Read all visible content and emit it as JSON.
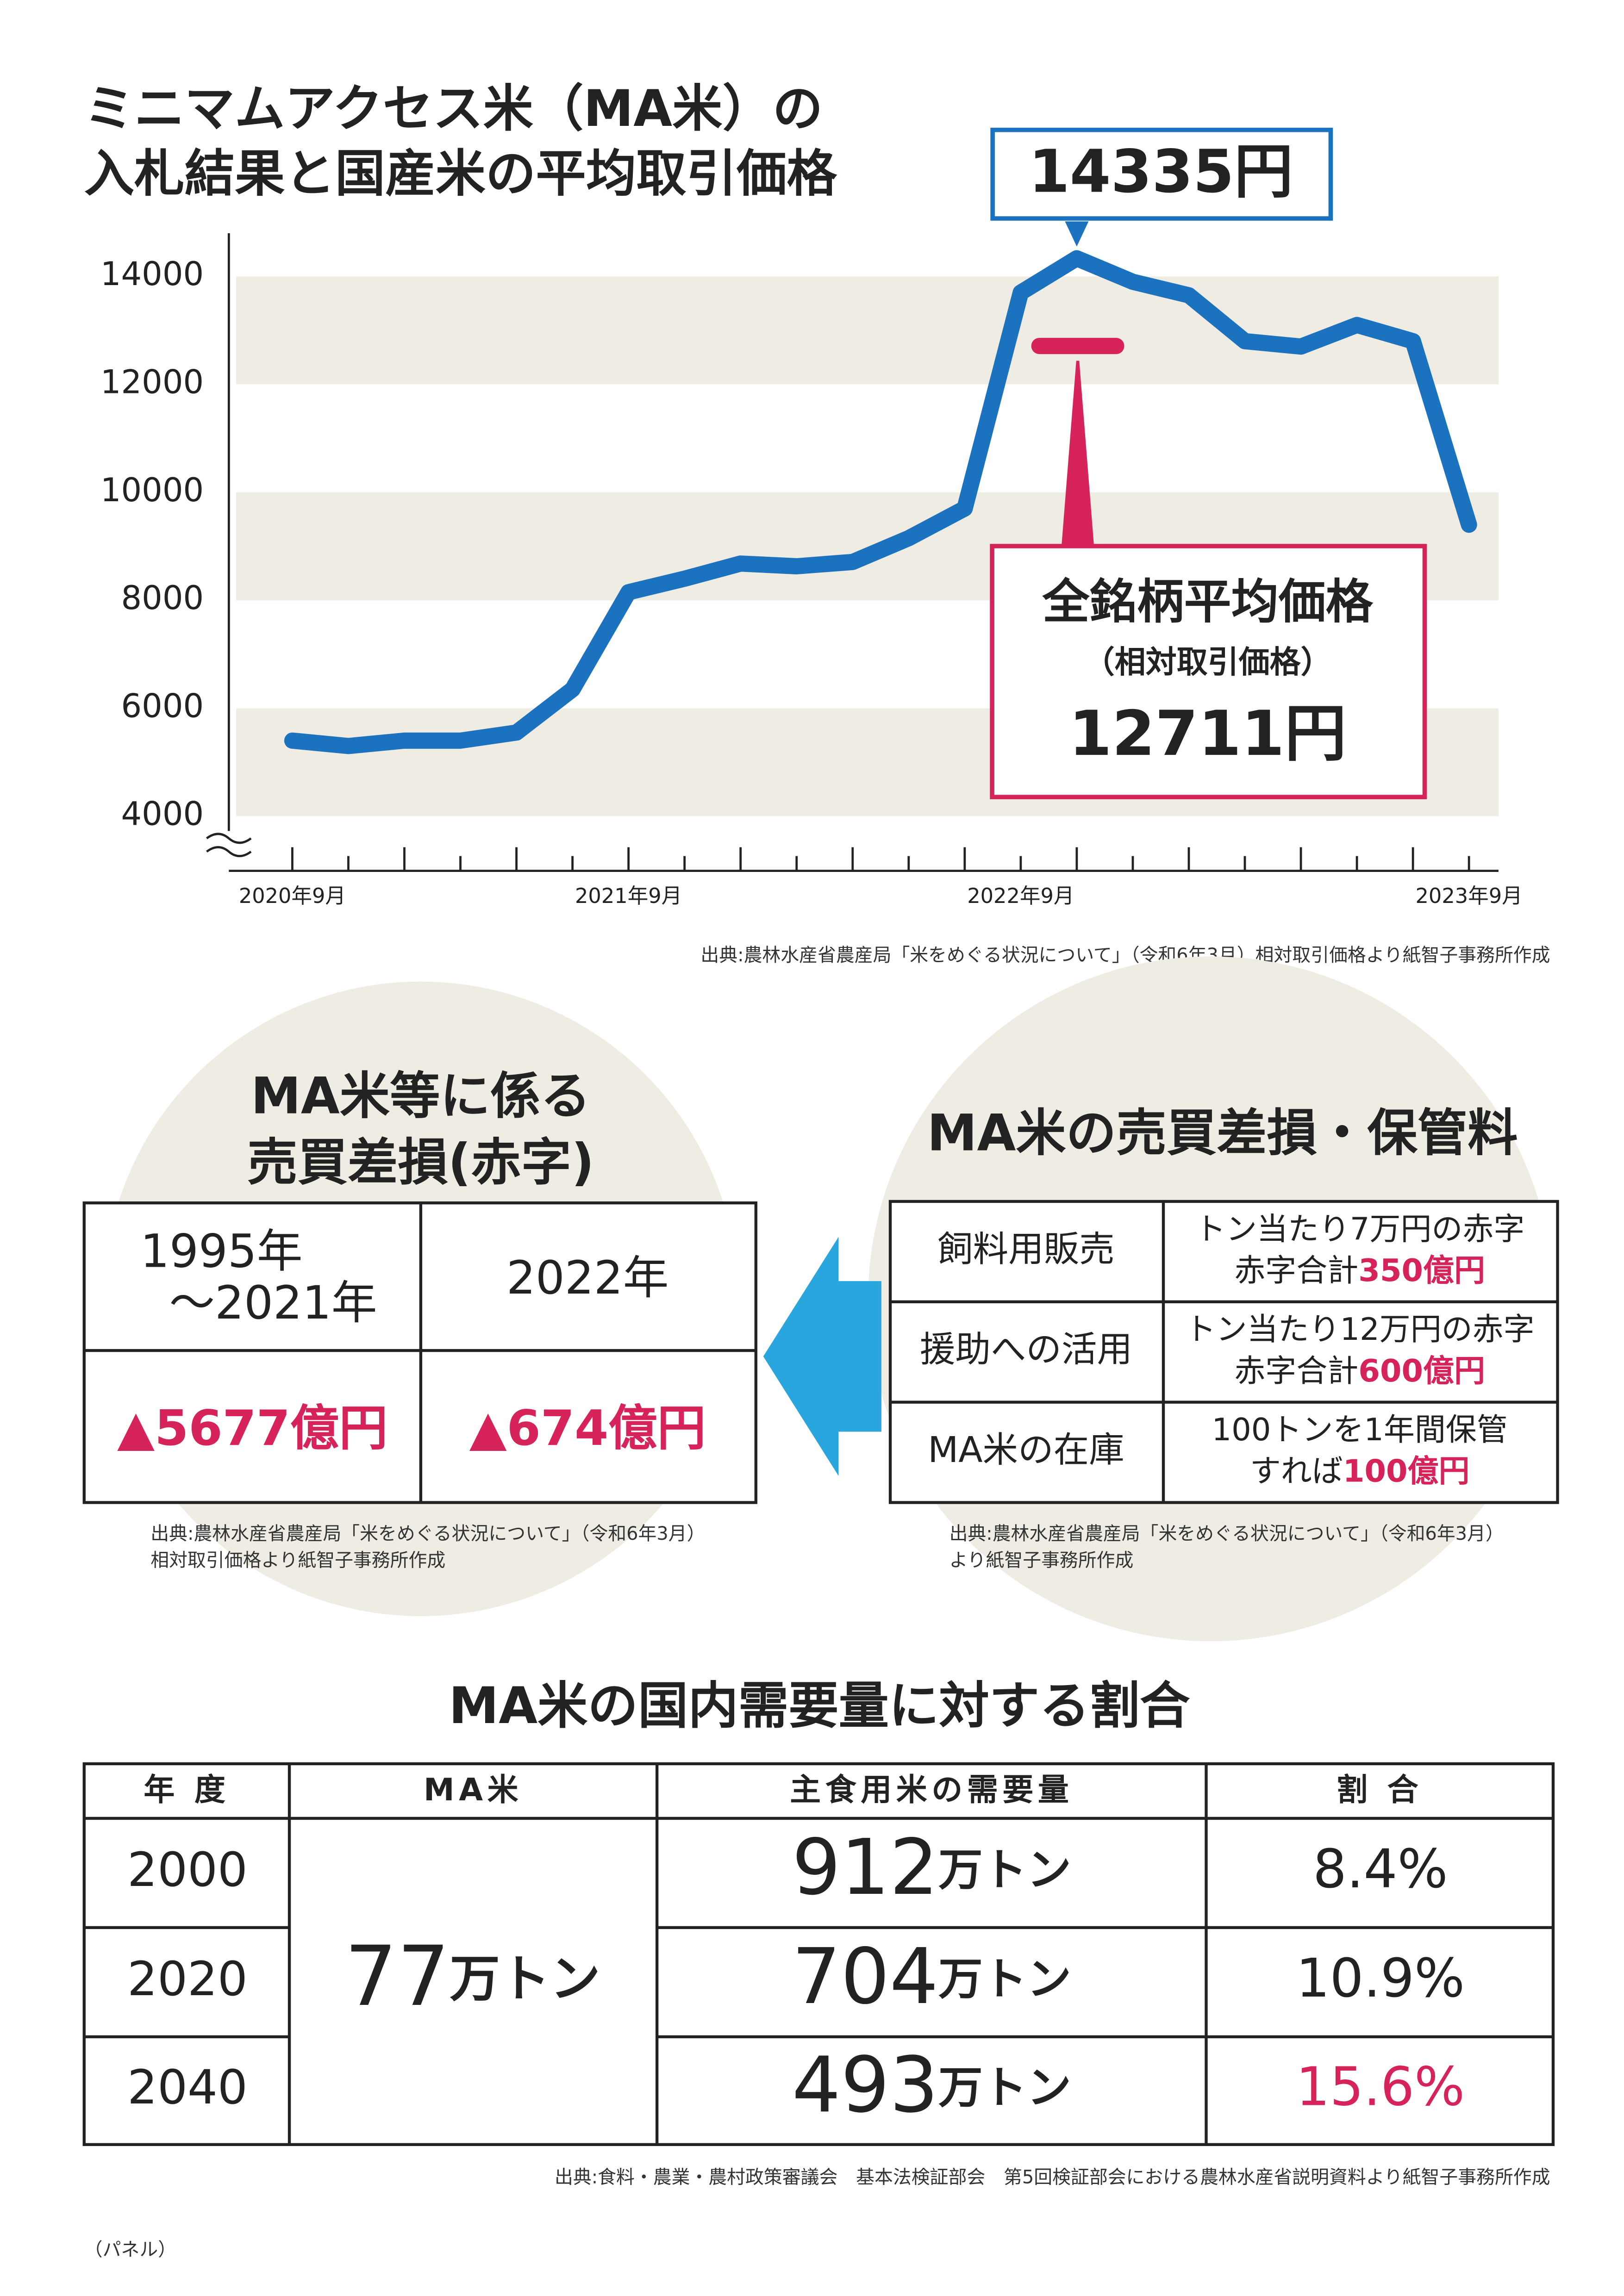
{
  "chart_data": {
    "type": "line",
    "title": [
      "ミニマムアクセス米（MA米）の",
      "入札結果と国産米の平均取引価格"
    ],
    "categories": [
      "2020年9月",
      null,
      null,
      null,
      null,
      null,
      "2021年9月",
      null,
      null,
      null,
      null,
      null,
      null,
      "2022年9月",
      null,
      null,
      null,
      null,
      null,
      null,
      null,
      "2023年9月"
    ],
    "series": [
      {
        "color": "#1b72bf",
        "values": [
          5400,
          5300,
          5400,
          5400,
          5550,
          6350,
          8150,
          8400,
          8680,
          8630,
          8710,
          9150,
          9700,
          13700,
          14335,
          13900,
          13650,
          12800,
          12700,
          13100,
          12800,
          9400
        ],
        "value_labels": [
          null,
          null,
          null,
          null,
          null,
          null,
          null,
          null,
          null,
          null,
          null,
          null,
          null,
          null,
          "14335円",
          null,
          null,
          null,
          null,
          null,
          null,
          null
        ]
      }
    ],
    "reference": {
      "label": "全銘柄平均価格",
      "sublabel": "（相対取引価格）",
      "value": 12711,
      "value_label": "12711円",
      "color": "#d6245a"
    },
    "ylim": [
      4000,
      14800
    ],
    "yticks": [
      4000,
      6000,
      8000,
      10000,
      12000,
      14000
    ],
    "grid": "bands",
    "source": "出典:農林水産省農産局「米をめぐる状況について」（令和6年3月）相対取引価格より紙智子事務所作成"
  },
  "loss": {
    "title": [
      "MA米等に係る",
      "売買差損(赤字)"
    ],
    "headers": [
      [
        "1995年",
        "～2021年"
      ],
      [
        "2022年"
      ]
    ],
    "values": [
      "▲5677億円",
      "▲674億円"
    ],
    "source": [
      "出典:農林水産省農産局「米をめぐる状況について」（令和6年3月）",
      "相対取引価格より紙智子事務所作成"
    ]
  },
  "storage": {
    "title": "MA米の売買差損・保管料",
    "rows": [
      {
        "item": "飼料用販売",
        "line1": "トン当たり7万円の赤字",
        "line2": "赤字合計",
        "amount": "350億円"
      },
      {
        "item": "援助への活用",
        "line1": "トン当たり12万円の赤字",
        "line2": "赤字合計",
        "amount": "600億円"
      },
      {
        "item": "MA米の在庫",
        "line1": "100トンを1年間保管",
        "line2": "すれば",
        "amount": "100億円"
      }
    ],
    "source": [
      "出典:農林水産省農産局「米をめぐる状況について」（令和6年3月）",
      "より紙智子事務所作成"
    ]
  },
  "ratio": {
    "title": "MA米の国内需要量に対する割合",
    "headers": [
      "年 度",
      "MA米",
      "主食用米の需要量",
      "割 合"
    ],
    "ma": {
      "number": "77",
      "unit": "万トン"
    },
    "rows": [
      {
        "year": "2000",
        "number": "912",
        "unit": "万トン",
        "ratio": "8.4%"
      },
      {
        "year": "2020",
        "number": "704",
        "unit": "万トン",
        "ratio": "10.9%"
      },
      {
        "year": "2040",
        "number": "493",
        "unit": "万トン",
        "ratio": "15.6%"
      }
    ],
    "source": "出典:食料・農業・農村政策審議会　基本法検証部会　第5回検証部会における農林水産省説明資料より紙智子事務所作成"
  },
  "footer": "（パネル）"
}
